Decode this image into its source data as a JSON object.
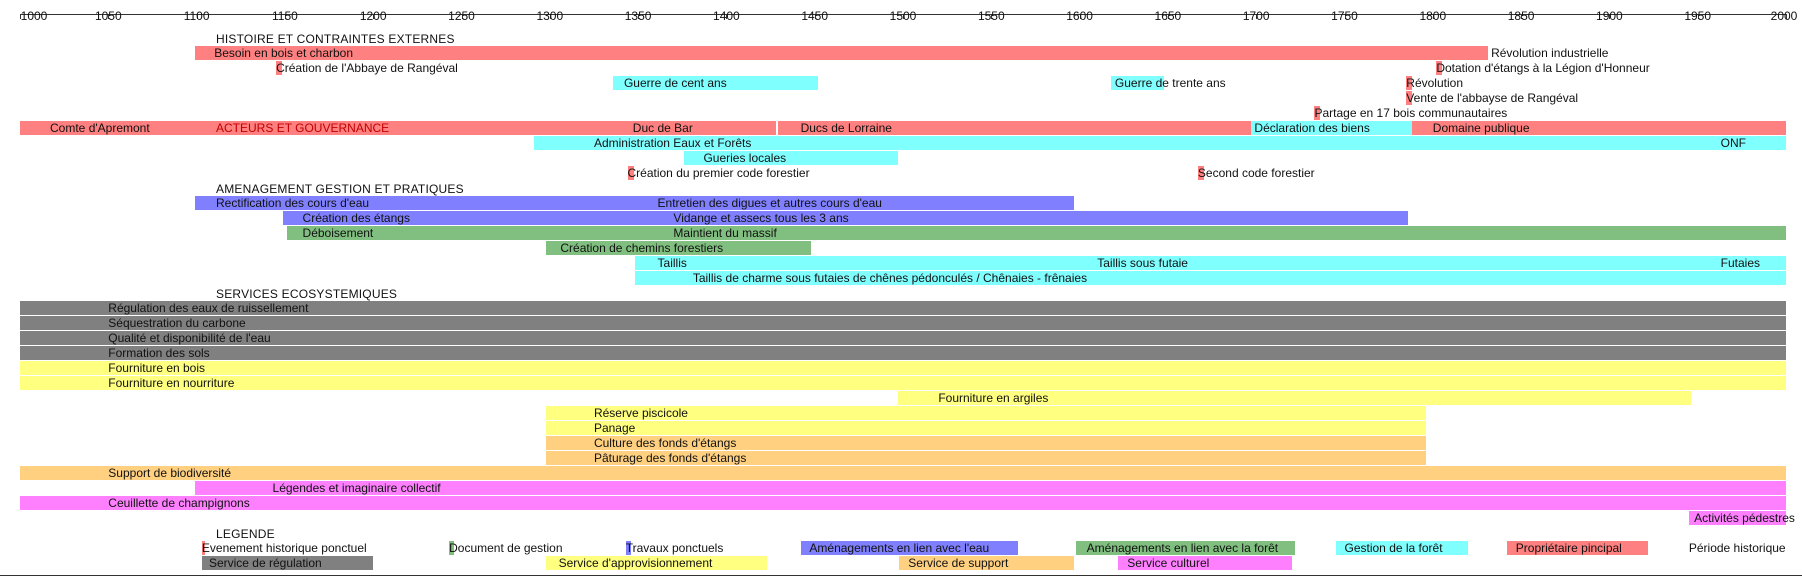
{
  "colors": {
    "red": "#ff8080",
    "cyan": "#80ffff",
    "blue": "#8080ff",
    "green": "#80bf80",
    "gray": "#808080",
    "yellow": "#ffff80",
    "orange": "#ffd080",
    "pink": "#ff80ff"
  },
  "axis": {
    "start": 1000,
    "end": 2000,
    "ticks": [
      "1000",
      "1050",
      "1100",
      "1150",
      "1200",
      "1250",
      "1300",
      "1350",
      "1400",
      "1450",
      "1500",
      "1550",
      "1600",
      "1650",
      "1700",
      "1750",
      "1800",
      "1850",
      "1900",
      "1950",
      "2000"
    ]
  },
  "sections": [
    {
      "text": "HISTOIRE ET CONTRAINTES EXTERNES",
      "row": 0
    },
    {
      "text": "AMENAGEMENT GESTION ET PRATIQUES",
      "row": 10
    },
    {
      "text": "SERVICES ECOSYSTEMIQUES",
      "row": 17
    },
    {
      "text": "LEGENDE",
      "row": 33
    }
  ],
  "rows": [
    {
      "row": 1,
      "bars": [
        {
          "start": 1099,
          "end": 1831,
          "color": "red",
          "text": "Besoin en bois et charbon",
          "text_at": 1110
        }
      ],
      "labels": [
        {
          "text": "Révolution industrielle",
          "at": 1833
        }
      ]
    },
    {
      "row": 2,
      "events": [
        {
          "at": 1145,
          "color": "red",
          "text": "Création de l'Abbaye de Rangéval"
        },
        {
          "at": 1802,
          "color": "red",
          "text": "Dotation d'étangs à la Légion d'Honneur"
        }
      ]
    },
    {
      "row": 3,
      "bars": [
        {
          "start": 1336,
          "end": 1452,
          "color": "cyan",
          "text": "Guerre de cent ans",
          "text_at": 1342
        },
        {
          "start": 1618,
          "end": 1648,
          "color": "cyan",
          "text": "Guerre de trente ans",
          "text_at": 1620
        }
      ],
      "events": [
        {
          "at": 1785,
          "color": "red",
          "text": "Révolution"
        }
      ]
    },
    {
      "row": 4,
      "events": [
        {
          "at": 1785,
          "color": "red",
          "text": "Vente de l'abbayse de Rangéval"
        }
      ]
    },
    {
      "row": 5,
      "events": [
        {
          "at": 1733,
          "color": "red",
          "text": "Partage en 17 bois communautaires"
        }
      ]
    },
    {
      "row": 6,
      "bars": [
        {
          "start": 1000,
          "end": 1099,
          "color": "red",
          "text": "Comte d'Apremont",
          "text_at": 1017
        },
        {
          "start": 1099,
          "end": 1341,
          "color": "red",
          "text": "ACTEURS ET GOUVERNANCE",
          "text_at": 1111,
          "text_color": "#c00000"
        },
        {
          "start": 1341,
          "end": 1428,
          "color": "red",
          "text": "Duc de Bar",
          "text_at": 1347
        },
        {
          "start": 1429,
          "end": 1697,
          "color": "red",
          "text": "Ducs de Lorraine",
          "text_at": 1442
        },
        {
          "start": 1697,
          "end": 1788,
          "color": "cyan",
          "text": "Déclaration des biens",
          "text_at": 1699
        },
        {
          "start": 1788,
          "end": 2000,
          "color": "red",
          "text": "Domaine publique",
          "text_at": 1800
        }
      ]
    },
    {
      "row": 7,
      "bars": [
        {
          "start": 1291,
          "end": 1960,
          "color": "cyan",
          "text": "Administration Eaux et Forêts",
          "text_at": 1325
        },
        {
          "start": 1960,
          "end": 2000,
          "color": "cyan",
          "text": "ONF",
          "text_at": 1963
        }
      ]
    },
    {
      "row": 8,
      "bars": [
        {
          "start": 1376,
          "end": 1497,
          "color": "cyan",
          "text": "Gueries locales",
          "text_at": 1387
        }
      ]
    },
    {
      "row": 9,
      "events": [
        {
          "at": 1344,
          "color": "red",
          "text": "Création du premier code forestier"
        },
        {
          "at": 1667,
          "color": "red",
          "text": "Second code forestier"
        }
      ]
    },
    {
      "row": 11,
      "bars": [
        {
          "start": 1099,
          "end": 1348,
          "color": "blue",
          "text": "Rectification des cours d'eau",
          "text_at": 1111
        },
        {
          "start": 1348,
          "end": 1597,
          "color": "blue",
          "text": "Entretien des digues et autres cours d'eau",
          "text_at": 1361
        }
      ]
    },
    {
      "row": 12,
      "bars": [
        {
          "start": 1149,
          "end": 1348,
          "color": "blue",
          "text": "Création des étangs",
          "text_at": 1160
        },
        {
          "start": 1348,
          "end": 1786,
          "color": "blue",
          "text": "Vidange et assecs tous les 3 ans",
          "text_at": 1370
        }
      ]
    },
    {
      "row": 13,
      "bars": [
        {
          "start": 1151,
          "end": 2000,
          "color": "green"
        }
      ],
      "labels": [
        {
          "text": "Déboisement",
          "at": 1160
        },
        {
          "text": "Maintient du massif",
          "at": 1370
        }
      ]
    },
    {
      "row": 14,
      "bars": [
        {
          "start": 1298,
          "end": 1448,
          "color": "green",
          "text": "Création de chemins forestiers",
          "text_at": 1306
        }
      ]
    },
    {
      "row": 15,
      "bars": [
        {
          "start": 1348,
          "end": 1598,
          "color": "cyan",
          "text": "Taillis",
          "text_at": 1361
        },
        {
          "start": 1598,
          "end": 1960,
          "color": "cyan",
          "text": "Taillis sous futaie",
          "text_at": 1610
        },
        {
          "start": 1960,
          "end": 2000,
          "color": "cyan",
          "text": "Futaies",
          "text_at": 1963
        }
      ]
    },
    {
      "row": 16,
      "bars": [
        {
          "start": 1348,
          "end": 2000,
          "color": "cyan",
          "text": "Taillis de charme sous futaies de chênes pédonculés / Chênaies - frênaies",
          "text_at": 1381
        }
      ]
    },
    {
      "row": 18,
      "bars": [
        {
          "start": 1000,
          "end": 2000,
          "color": "gray",
          "text": "Régulation des eaux de ruissellement",
          "text_at": 1050
        }
      ]
    },
    {
      "row": 19,
      "bars": [
        {
          "start": 1000,
          "end": 2000,
          "color": "gray",
          "text": "Séquestration du carbone",
          "text_at": 1050
        }
      ]
    },
    {
      "row": 20,
      "bars": [
        {
          "start": 1000,
          "end": 2000,
          "color": "gray",
          "text": "Qualité et disponibilité de l'eau",
          "text_at": 1050
        }
      ]
    },
    {
      "row": 21,
      "bars": [
        {
          "start": 1000,
          "end": 2000,
          "color": "gray",
          "text": "Formation des sols",
          "text_at": 1050
        }
      ]
    },
    {
      "row": 22,
      "bars": [
        {
          "start": 1000,
          "end": 2000,
          "color": "yellow",
          "text": "Fourniture en bois",
          "text_at": 1050
        }
      ]
    },
    {
      "row": 23,
      "bars": [
        {
          "start": 1000,
          "end": 2000,
          "color": "yellow",
          "text": "Fourniture en nourriture",
          "text_at": 1050
        }
      ]
    },
    {
      "row": 24,
      "bars": [
        {
          "start": 1497,
          "end": 1946,
          "color": "yellow",
          "text": "Fourniture en argiles",
          "text_at": 1520
        }
      ]
    },
    {
      "row": 25,
      "bars": [
        {
          "start": 1298,
          "end": 1796,
          "color": "yellow",
          "text": "Réserve piscicole",
          "text_at": 1325
        }
      ]
    },
    {
      "row": 26,
      "bars": [
        {
          "start": 1298,
          "end": 1796,
          "color": "yellow",
          "text": "Panage",
          "text_at": 1325
        }
      ]
    },
    {
      "row": 27,
      "bars": [
        {
          "start": 1298,
          "end": 1796,
          "color": "orange",
          "text": "Culture des fonds d'étangs",
          "text_at": 1325
        }
      ]
    },
    {
      "row": 28,
      "bars": [
        {
          "start": 1298,
          "end": 1796,
          "color": "orange",
          "text": "Pâturage des fonds d'étangs",
          "text_at": 1325
        }
      ]
    },
    {
      "row": 29,
      "bars": [
        {
          "start": 1000,
          "end": 2000,
          "color": "orange",
          "text": "Support de biodiversité",
          "text_at": 1050
        }
      ]
    },
    {
      "row": 30,
      "bars": [
        {
          "start": 1099,
          "end": 2000,
          "color": "pink",
          "text": "Légendes et imaginaire collectif",
          "text_at": 1143
        }
      ]
    },
    {
      "row": 31,
      "bars": [
        {
          "start": 1000,
          "end": 2000,
          "color": "pink",
          "text": "Ceuillette de champignons",
          "text_at": 1050
        }
      ]
    },
    {
      "row": 32,
      "bars": [
        {
          "start": 1945,
          "end": 2000,
          "color": "pink",
          "text": "Activités pédestres",
          "text_at": 1948
        }
      ]
    }
  ],
  "legend": [
    {
      "row": 34,
      "start": 1103,
      "end": 1105,
      "color": "red",
      "text": "Evenement historique ponctuel",
      "text_at": 1103
    },
    {
      "row": 35,
      "start": 1103,
      "end": 1200,
      "color": "gray",
      "text": "Service de régulation",
      "text_at": 1107
    },
    {
      "row": 34,
      "start": 1243,
      "end": 1246,
      "color": "green",
      "text": "Document de gestion",
      "text_at": 1243
    },
    {
      "row": 34,
      "start": 1343,
      "end": 1346,
      "color": "blue",
      "text": "Travaux ponctuels",
      "text_at": 1343
    },
    {
      "row": 35,
      "start": 1298,
      "end": 1423,
      "color": "yellow",
      "text": "Service d'approvisionnement",
      "text_at": 1305
    },
    {
      "row": 34,
      "start": 1442,
      "end": 1565,
      "color": "blue",
      "text": "Aménagements en lien avec l'eau",
      "text_at": 1447
    },
    {
      "row": 35,
      "start": 1498,
      "end": 1597,
      "color": "orange",
      "text": "Service de support",
      "text_at": 1503
    },
    {
      "row": 34,
      "start": 1598,
      "end": 1722,
      "color": "green",
      "text": "Aménagements en lien avec la forêt",
      "text_at": 1604
    },
    {
      "row": 35,
      "start": 1622,
      "end": 1720,
      "color": "pink",
      "text": "Service culturel",
      "text_at": 1627
    },
    {
      "row": 34,
      "start": 1745,
      "end": 1820,
      "color": "cyan",
      "text": "Gestion de la forêt",
      "text_at": 1750
    },
    {
      "row": 34,
      "start": 1842,
      "end": 1922,
      "color": "red",
      "text": "Propriétaire pincipal",
      "text_at": 1847
    },
    {
      "row": 34,
      "text": "Période historique",
      "text_at": 1945
    }
  ]
}
